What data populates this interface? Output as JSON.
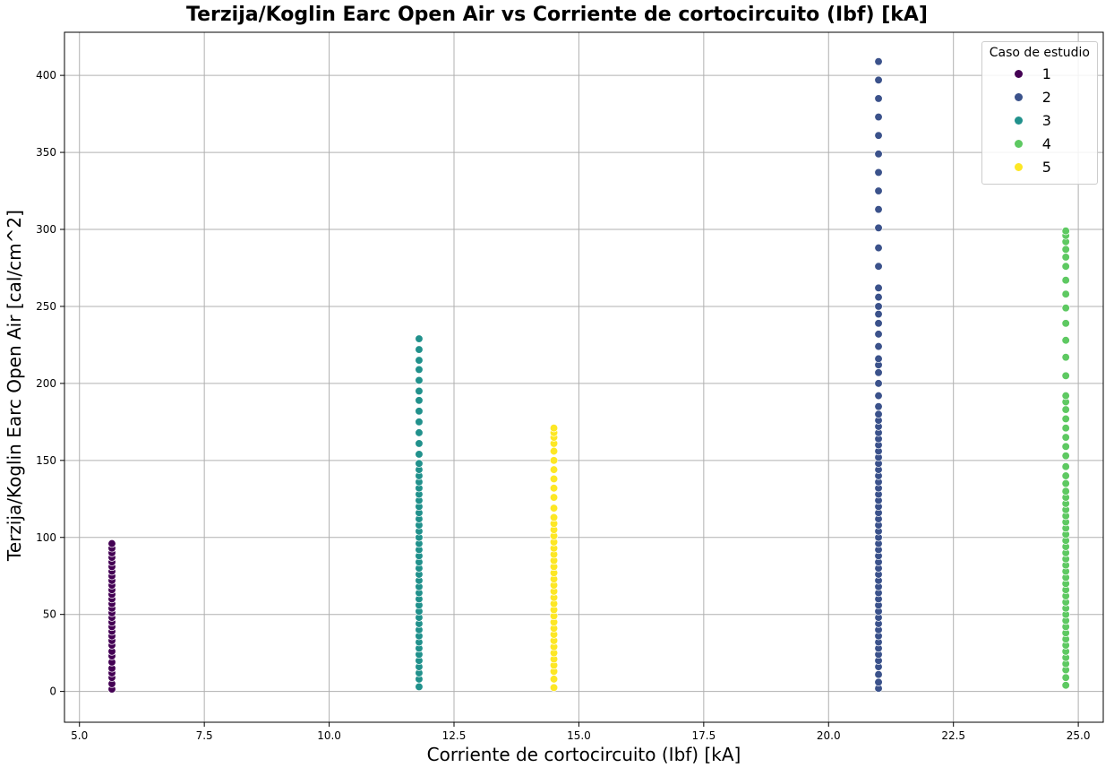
{
  "chart_data": {
    "type": "scatter",
    "title": "Terzija/Koglin Earc Open Air vs Corriente de cortocircuito (Ibf) [kA]",
    "xlabel": "Corriente de cortocircuito (Ibf) [kA]",
    "ylabel": "Terzija/Koglin Earc Open Air [cal/cm^2]",
    "xlim": [
      4.7,
      25.5
    ],
    "ylim": [
      -20,
      428
    ],
    "xticks": [
      5.0,
      7.5,
      10.0,
      12.5,
      15.0,
      17.5,
      20.0,
      22.5,
      25.0
    ],
    "xtick_labels": [
      "5.0",
      "7.5",
      "10.0",
      "12.5",
      "15.0",
      "17.5",
      "20.0",
      "22.5",
      "25.0"
    ],
    "yticks": [
      0,
      50,
      100,
      150,
      200,
      250,
      300,
      350,
      400
    ],
    "ytick_labels": [
      "0",
      "50",
      "100",
      "150",
      "200",
      "250",
      "300",
      "350",
      "400"
    ],
    "grid": true,
    "legend_title": "Caso de estudio",
    "legend_position": "top-right",
    "series": [
      {
        "name": "1",
        "color": "#440154",
        "x": 5.65,
        "y": [
          1.5,
          5,
          9,
          12,
          15,
          19,
          23,
          26,
          30,
          33,
          36,
          39,
          42,
          45,
          48,
          51,
          54,
          57,
          60,
          63,
          66,
          69,
          72,
          75,
          78,
          81,
          84,
          87,
          90,
          93,
          96
        ]
      },
      {
        "name": "2",
        "color": "#3b528b",
        "x": 21.0,
        "y": [
          2,
          6,
          11,
          16,
          20,
          24,
          28,
          32,
          36,
          40,
          44,
          48,
          52,
          56,
          60,
          64,
          68,
          72,
          76,
          80,
          84,
          88,
          92,
          96,
          100,
          104,
          108,
          112,
          116,
          120,
          124,
          128,
          132,
          136,
          140,
          144,
          148,
          152,
          156,
          160,
          164,
          168,
          172,
          176,
          180,
          185,
          192,
          200,
          207,
          212,
          216,
          224,
          232,
          239,
          245,
          250,
          256,
          262,
          276,
          288,
          301,
          313,
          325,
          337,
          349,
          361,
          373,
          385,
          397,
          409
        ]
      },
      {
        "name": "3",
        "color": "#21918c",
        "x": 11.8,
        "y": [
          3,
          8,
          12,
          16,
          20,
          24,
          28,
          32,
          36,
          40,
          44,
          48,
          52,
          56,
          60,
          64,
          68,
          72,
          76,
          80,
          84,
          88,
          92,
          96,
          100,
          104,
          108,
          112,
          116,
          120,
          124,
          128,
          132,
          136,
          140,
          144,
          148,
          154,
          161,
          168,
          175,
          182,
          189,
          195,
          202,
          209,
          215,
          222,
          229
        ]
      },
      {
        "name": "4",
        "color": "#5ec962",
        "x": 24.75,
        "y": [
          4,
          9,
          14,
          18,
          22,
          26,
          30,
          34,
          38,
          42,
          46,
          50,
          54,
          58,
          62,
          66,
          70,
          74,
          78,
          82,
          86,
          90,
          94,
          98,
          102,
          106,
          110,
          114,
          118,
          122,
          126,
          130,
          135,
          140,
          146,
          153,
          159,
          165,
          171,
          177,
          183,
          188,
          192,
          205,
          217,
          228,
          239,
          249,
          258,
          267,
          276,
          282,
          287,
          292,
          296,
          299
        ]
      },
      {
        "name": "5",
        "color": "#fde725",
        "x": 14.5,
        "y": [
          2.5,
          8,
          13,
          17,
          21,
          25,
          29,
          33,
          37,
          41,
          45,
          49,
          53,
          57,
          61,
          65,
          69,
          73,
          77,
          81,
          85,
          89,
          93,
          97,
          101,
          105,
          109,
          113,
          119,
          126,
          132,
          138,
          144,
          150,
          156,
          161,
          165,
          168,
          171
        ]
      }
    ]
  }
}
